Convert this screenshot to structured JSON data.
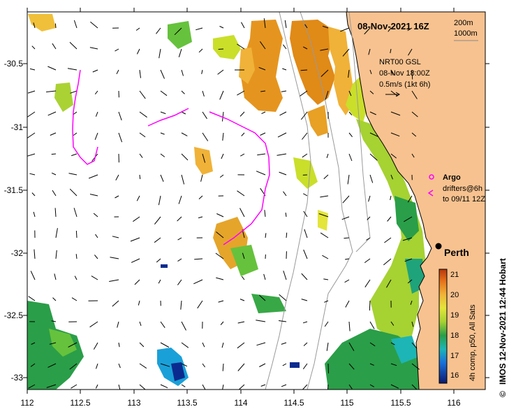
{
  "header": {
    "date": "08-Nov-2021 16Z",
    "contour_1": "200m",
    "contour_2": "1000m"
  },
  "current_info": {
    "line1": "NRT00 GSL",
    "line2": "08-Nov 18:00Z",
    "line3": "0.5m/s (1kt 6h)"
  },
  "legend": {
    "argo": "Argo",
    "drifters_1": "drifters@6h",
    "drifters_2": "to 09/11 12Z"
  },
  "city": "Perth",
  "colorbar": {
    "label": "4h comp, p50, All Sats",
    "ticks": [
      "21",
      "20",
      "19",
      "18",
      "17",
      "16"
    ],
    "range": [
      15.6,
      21.2
    ]
  },
  "credit": "IMOS 12-Nov-2021 12:44 Hobart",
  "copyright_symbol": "©",
  "chart_data": {
    "type": "heatmap",
    "xlim": [
      112,
      116.3
    ],
    "ylim": [
      -33.15,
      -30.1
    ],
    "x_ticks": [
      "112",
      "112.5",
      "113",
      "113.5",
      "114",
      "114.5",
      "115",
      "115.5",
      "116"
    ],
    "y_ticks": [
      "-30.5",
      "-31",
      "-31.5",
      "-32",
      "-32.5",
      "-33"
    ],
    "city_marker": {
      "name": "Perth",
      "lon": 115.86,
      "lat": -31.95
    },
    "colors": {
      "land": "#f7c28f",
      "coast_line": "#000000",
      "drifter": "#ff00ff",
      "isobath": "#9a9a9a"
    }
  }
}
